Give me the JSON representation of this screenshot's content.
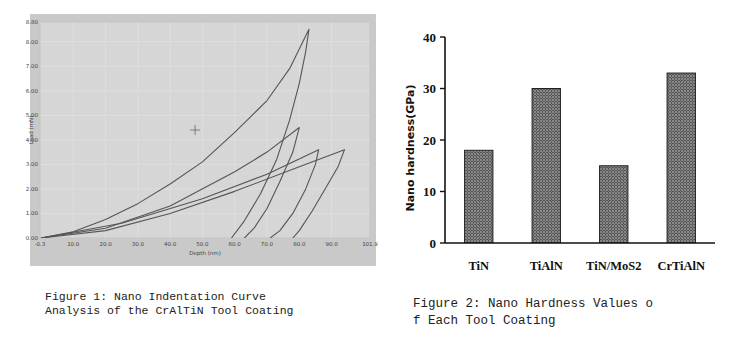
{
  "chart_data": [
    {
      "type": "line",
      "title": [
        "Figure 1: Nano Indentation Curve",
        "Analysis of the CrAlTiN Tool Coating"
      ],
      "x_label": "Depth (nm)",
      "y_label": "Load (mN)",
      "xlim": [
        -0.3,
        101.9
      ],
      "xticks": [
        {
          "value": -0.3,
          "label": "-0.3"
        },
        {
          "value": 10,
          "label": "10.0"
        },
        {
          "value": 20,
          "label": "20.0"
        },
        {
          "value": 30,
          "label": "30.0"
        },
        {
          "value": 40,
          "label": "40.0"
        },
        {
          "value": 50,
          "label": "50.0"
        },
        {
          "value": 60,
          "label": "60.0"
        },
        {
          "value": 70,
          "label": "70.0"
        },
        {
          "value": 80,
          "label": "80.0"
        },
        {
          "value": 90,
          "label": "90.0"
        },
        {
          "value": 101.9,
          "label": "101.9"
        }
      ],
      "ylim": [
        0,
        8.8
      ],
      "yticks": [
        {
          "value": 0,
          "label": "0.00"
        },
        {
          "value": 1,
          "label": "1.00"
        },
        {
          "value": 2,
          "label": "2.00"
        },
        {
          "value": 3,
          "label": "3.00"
        },
        {
          "value": 4,
          "label": "4.00"
        },
        {
          "value": 5,
          "label": "5.00"
        },
        {
          "value": 6,
          "label": "6.00"
        },
        {
          "value": 7,
          "label": "7.00"
        },
        {
          "value": 8,
          "label": "8.00"
        },
        {
          "value": 8.8,
          "label": "8.80"
        }
      ],
      "grid": true,
      "color": "#555555",
      "series": [
        {
          "x": [
            0,
            10,
            20,
            30,
            40,
            50,
            60,
            70,
            77,
            83,
            82,
            80,
            77,
            73,
            68,
            63,
            59
          ],
          "values": [
            0,
            0.25,
            0.75,
            1.4,
            2.2,
            3.1,
            4.3,
            5.6,
            6.9,
            8.5,
            7.6,
            6.3,
            4.8,
            3.2,
            1.8,
            0.7,
            0
          ]
        },
        {
          "x": [
            0,
            20,
            40,
            60,
            70,
            80,
            78,
            74,
            70,
            66,
            63
          ],
          "values": [
            0,
            0.4,
            1.3,
            2.7,
            3.5,
            4.5,
            3.5,
            2.3,
            1.2,
            0.4,
            0
          ]
        },
        {
          "x": [
            0,
            20,
            40,
            60,
            80,
            94,
            92,
            88,
            84,
            80,
            78
          ],
          "values": [
            0,
            0.3,
            1.0,
            1.9,
            2.9,
            3.6,
            2.9,
            2.0,
            1.1,
            0.3,
            0
          ]
        },
        {
          "x": [
            0,
            25,
            50,
            70,
            86,
            85,
            82,
            78,
            74,
            71
          ],
          "values": [
            0,
            0.6,
            1.6,
            2.6,
            3.6,
            3.0,
            2.0,
            1.0,
            0.3,
            0
          ]
        }
      ]
    },
    {
      "type": "bar",
      "title": [
        "Figure 2: Nano Hardness Values o",
        "f Each Tool Coating"
      ],
      "y_label": "Nano hardness(GPa)",
      "categories": [
        "TiN",
        "TiAlN",
        "TiN/MoS2",
        "CrTiAlN"
      ],
      "values": [
        18,
        30,
        15,
        33
      ],
      "color": "#555555",
      "ylim": [
        0,
        40
      ],
      "yticks": [
        0,
        10,
        20,
        30,
        40
      ],
      "grid": false
    }
  ]
}
